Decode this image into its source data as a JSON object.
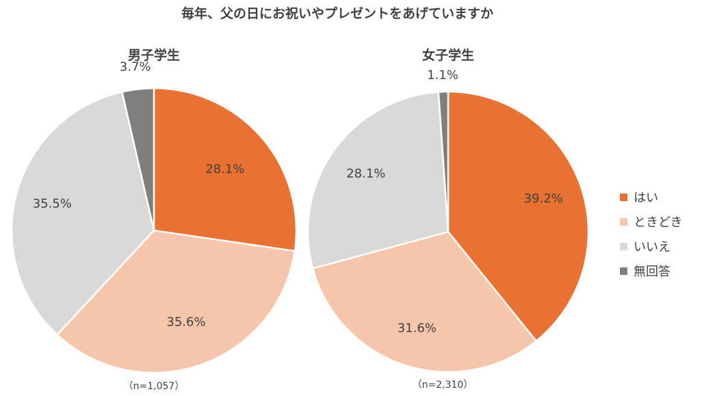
{
  "title": "毎年、父の日にお祝いやプレゼントをあげていますか",
  "chart_data": [
    {
      "type": "pie",
      "title": "男子学生",
      "note": "（n=1,057）",
      "categories": [
        "はい",
        "ときどき",
        "いいえ",
        "無回答"
      ],
      "values": [
        28.1,
        35.6,
        35.5,
        3.7
      ],
      "labels": [
        "28.1%",
        "35.6%",
        "35.5%",
        "3.7%"
      ],
      "start_angle_deg": 0,
      "direction": "clockwise"
    },
    {
      "type": "pie",
      "title": "女子学生",
      "note": "（n=2,310）",
      "categories": [
        "はい",
        "ときどき",
        "いいえ",
        "無回答"
      ],
      "values": [
        39.2,
        31.6,
        28.1,
        1.1
      ],
      "labels": [
        "39.2%",
        "31.6%",
        "28.1%",
        "1.1%"
      ],
      "start_angle_deg": 0,
      "direction": "clockwise"
    }
  ],
  "legend": {
    "position": "right",
    "items": [
      {
        "label": "はい",
        "color": "#E97132"
      },
      {
        "label": "ときどき",
        "color": "#F5C6AB"
      },
      {
        "label": "いいえ",
        "color": "#D9D9D9"
      },
      {
        "label": "無回答",
        "color": "#7F7F7F"
      }
    ]
  },
  "colors": {
    "slice_border": "#ffffff"
  }
}
